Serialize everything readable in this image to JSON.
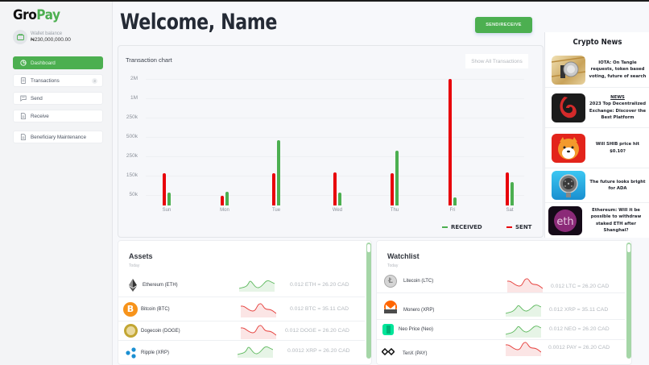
{
  "app": {
    "logo_part1": "Gro",
    "logo_part2": "Pay",
    "brand_color": "#4caf50"
  },
  "wallet": {
    "label": "Wallet balance",
    "value": "₦230,000,000.00",
    "icon": "wallet-icon"
  },
  "sidebar": {
    "items": [
      {
        "label": "Dashboard",
        "icon": "pie-chart-icon",
        "active": true
      },
      {
        "label": "Transactions",
        "icon": "document-icon",
        "badge": "3"
      },
      {
        "label": "Send",
        "icon": "message-icon"
      },
      {
        "label": "Receive",
        "icon": "file-icon"
      },
      {
        "label": "Beneficiary Maintenance",
        "icon": "file-icon"
      }
    ]
  },
  "header": {
    "title": "Welcome, Name",
    "action_button": "SEND/RECEIVE"
  },
  "chart_card": {
    "title": "Transaction chart",
    "show_all_button": "Show All Transactions"
  },
  "chart_data": {
    "type": "bar",
    "title": "Transaction chart",
    "xlabel": "",
    "ylabel": "",
    "y_tick_labels": [
      "2M",
      "1M",
      "250k",
      "500k",
      "250k",
      "150k",
      "50k"
    ],
    "categories": [
      "Sun",
      "Mon",
      "Tue",
      "Wed",
      "Thu",
      "Fri",
      "Sat"
    ],
    "series": [
      {
        "name": "SENT",
        "color": "#e8000a",
        "values": [
          500,
          150,
          500,
          505,
          500,
          1950,
          505
        ]
      },
      {
        "name": "RECEIVED",
        "color": "#4caf50",
        "values": [
          200,
          205,
          1000,
          200,
          850,
          130,
          360
        ]
      }
    ],
    "legend": [
      "RECEIVED",
      "SENT"
    ],
    "legend_position": "bottom-right",
    "grid": true,
    "note": "values are in approximate units read from bar heights relative to the axis ticks (k)"
  },
  "news": {
    "title": "Crypto News",
    "items": [
      {
        "tag": "",
        "headline": "IOTA: On Tangle requests, token based voting, future of search",
        "thumb": "iota-coin-thumbnail"
      },
      {
        "tag": "NEWS",
        "headline": "2023 Top Decentralized Exchange: Discover the Best Platform",
        "thumb": "dex-logo-thumbnail"
      },
      {
        "tag": "",
        "headline": "Will SHIB price hit $0.10?",
        "thumb": "shiba-inu-thumbnail"
      },
      {
        "tag": "",
        "headline": "The future looks bright for ADA",
        "thumb": "cardano-coin-thumbnail"
      },
      {
        "tag": "",
        "headline": "Ethereum: Will it be possible to withdraw staked ETH after Shanghai?",
        "thumb": "eth-thumbnail"
      }
    ]
  },
  "assets": {
    "title": "Assets",
    "subtitle": "Today",
    "rows": [
      {
        "name": "Ethereum (ETH)",
        "price": "0.012 ETH = 26.20 CAD",
        "trend": "up",
        "icon": "ethereum-icon"
      },
      {
        "name": "Bitcoin (BTC)",
        "price": "0.012 BTC = 35.11 CAD",
        "trend": "down",
        "icon": "bitcoin-icon"
      },
      {
        "name": "Dogecoin (DOGE)",
        "price": "0.012 DOGE = 26.20 CAD",
        "trend": "down",
        "icon": "dogecoin-icon"
      },
      {
        "name": "Ripple (XRP)",
        "price": "0.0012 XRP = 26.20 CAD",
        "trend": "up",
        "icon": "ripple-icon"
      }
    ]
  },
  "watchlist": {
    "title": "Watchlist",
    "subtitle": "Today",
    "rows": [
      {
        "name": "Litecoin (LTC)",
        "price": "0.012 LTC = 26.20 CAD",
        "trend": "down",
        "icon": "litecoin-icon"
      },
      {
        "name": "Monero (XRP)",
        "price": "0.012 XRP = 35.11 CAD",
        "trend": "up",
        "icon": "monero-icon"
      },
      {
        "name": "Neo Price (Neo)",
        "price": "0.012 NEO = 26.20 CAD",
        "trend": "up",
        "icon": "neo-icon"
      },
      {
        "name": "TenX (PAY)",
        "price": "0.0012 PAY = 26.20 CAD",
        "trend": "down",
        "icon": "tenx-icon"
      }
    ]
  },
  "colors": {
    "sent": "#e8000a",
    "received": "#4caf50",
    "scrollbar": "#a5d6a7",
    "trend_up": "#5cb85c",
    "trend_down": "#e53935"
  }
}
